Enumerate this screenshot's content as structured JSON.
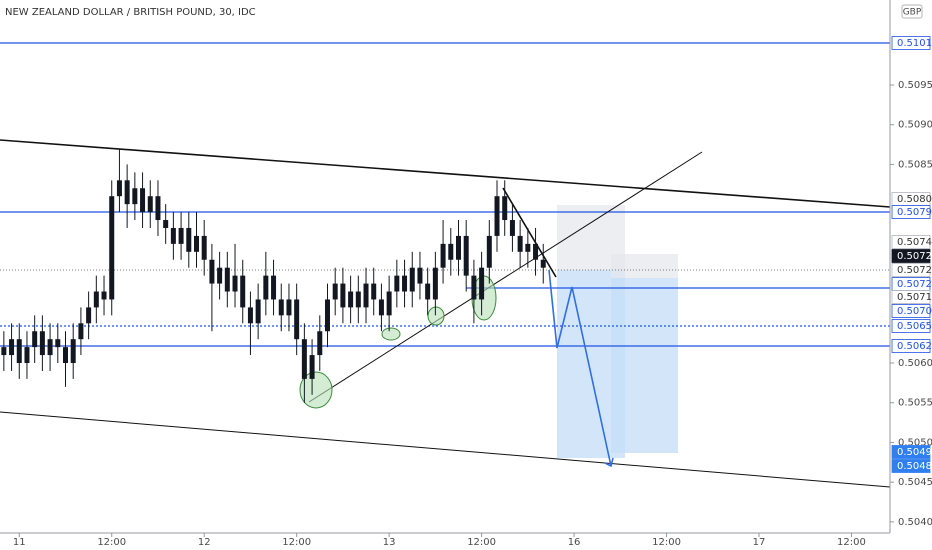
{
  "chart_data": {
    "type": "candlestick",
    "title": "NEW ZEALAND DOLLAR / BRITISH POUND, 30, IDC",
    "currency": "GBP",
    "color": "#131722",
    "ylim": [
      0.50386,
      0.51057
    ],
    "yticks": [
      {
        "value": 0.504,
        "label": "0.5040"
      },
      {
        "value": 0.5045,
        "label": "0.5045"
      },
      {
        "value": 0.505,
        "label": "0.5050"
      },
      {
        "value": 0.5055,
        "label": "0.5055"
      },
      {
        "value": 0.506,
        "label": "0.5060"
      },
      {
        "value": 0.5085,
        "label": "0.5085"
      },
      {
        "value": 0.509,
        "label": "0.5090"
      },
      {
        "value": 0.5095,
        "label": "0.5095"
      }
    ],
    "xlim": [
      -0.5,
      115
    ],
    "xticks": [
      {
        "value": 2,
        "label": "11"
      },
      {
        "value": 14,
        "label": "12:00"
      },
      {
        "value": 26,
        "label": "12"
      },
      {
        "value": 38,
        "label": "12:00"
      },
      {
        "value": 50,
        "label": "13"
      },
      {
        "value": 62,
        "label": "12:00"
      },
      {
        "value": 74,
        "label": "16"
      },
      {
        "value": 86,
        "label": "12:00"
      },
      {
        "value": 98,
        "label": "17"
      },
      {
        "value": 110,
        "label": "12:00"
      }
    ],
    "open": [
      0.5062,
      0.5061,
      0.5063,
      0.506,
      0.5062,
      0.5064,
      0.5061,
      0.5063,
      0.5062,
      0.506,
      0.5063,
      0.5065,
      0.5067,
      0.5069,
      0.5068,
      0.5081,
      0.5083,
      0.508,
      0.5082,
      0.5079,
      0.5081,
      0.5078,
      0.5077,
      0.5075,
      0.5077,
      0.5074,
      0.5076,
      0.5073,
      0.507,
      0.5072,
      0.5069,
      0.5071,
      0.5067,
      0.5065,
      0.5068,
      0.5071,
      0.5068,
      0.5066,
      0.5068,
      0.5063,
      0.5058,
      0.5061,
      0.5064,
      0.5068,
      0.507,
      0.5067,
      0.5069,
      0.5067,
      0.507,
      0.5068,
      0.5066,
      0.5069,
      0.5071,
      0.5069,
      0.5072,
      0.507,
      0.5068,
      0.5072,
      0.5075,
      0.5073,
      0.5076,
      0.5071,
      0.5068,
      0.5072,
      0.5076,
      0.5081,
      0.5078,
      0.5076,
      0.5074,
      0.5075,
      0.5073
    ],
    "high": [
      0.5064,
      0.5065,
      0.5065,
      0.5064,
      0.5066,
      0.5066,
      0.5065,
      0.5065,
      0.5064,
      0.5065,
      0.5067,
      0.5069,
      0.5071,
      0.5071,
      0.5083,
      0.5087,
      0.5085,
      0.5084,
      0.5084,
      0.5083,
      0.5083,
      0.508,
      0.5079,
      0.5079,
      0.5079,
      0.5079,
      0.5078,
      0.5075,
      0.5074,
      0.5074,
      0.5075,
      0.5073,
      0.5069,
      0.507,
      0.5074,
      0.5073,
      0.507,
      0.507,
      0.507,
      0.5065,
      0.5063,
      0.5066,
      0.507,
      0.5072,
      0.5072,
      0.5071,
      0.5071,
      0.5072,
      0.5072,
      0.507,
      0.5071,
      0.5073,
      0.5073,
      0.5074,
      0.5074,
      0.5072,
      0.5074,
      0.5078,
      0.5077,
      0.5078,
      0.5078,
      0.5073,
      0.5074,
      0.5078,
      0.5083,
      0.5083,
      0.508,
      0.5078,
      0.5077,
      0.5077,
      0.5075
    ],
    "low": [
      0.5059,
      0.5059,
      0.5058,
      0.5058,
      0.506,
      0.5059,
      0.5059,
      0.506,
      0.5057,
      0.5058,
      0.5061,
      0.5063,
      0.5065,
      0.5066,
      0.5066,
      0.5079,
      0.5077,
      0.5078,
      0.5077,
      0.5077,
      0.5076,
      0.5075,
      0.5073,
      0.5073,
      0.5072,
      0.5072,
      0.5071,
      0.5064,
      0.5068,
      0.5067,
      0.5067,
      0.5065,
      0.5061,
      0.5063,
      0.5066,
      0.5066,
      0.5064,
      0.5064,
      0.5061,
      0.5055,
      0.5056,
      0.5059,
      0.5062,
      0.5066,
      0.5065,
      0.5065,
      0.5065,
      0.5065,
      0.5066,
      0.5064,
      0.5064,
      0.5067,
      0.5067,
      0.5067,
      0.5068,
      0.5066,
      0.5066,
      0.507,
      0.5071,
      0.5071,
      0.5069,
      0.5065,
      0.5066,
      0.507,
      0.5074,
      0.5076,
      0.5074,
      0.5072,
      0.5072,
      0.5071,
      0.507
    ],
    "close": [
      0.5061,
      0.5063,
      0.506,
      0.5062,
      0.5064,
      0.5061,
      0.5063,
      0.5062,
      0.506,
      0.5063,
      0.5065,
      0.5067,
      0.5069,
      0.5068,
      0.5081,
      0.5083,
      0.508,
      0.5082,
      0.5079,
      0.5081,
      0.5078,
      0.5077,
      0.5075,
      0.5077,
      0.5074,
      0.5076,
      0.5073,
      0.507,
      0.5072,
      0.5069,
      0.5071,
      0.5067,
      0.5065,
      0.5068,
      0.5071,
      0.5068,
      0.5066,
      0.5068,
      0.5063,
      0.5058,
      0.5061,
      0.5064,
      0.5068,
      0.507,
      0.5067,
      0.5069,
      0.5067,
      0.507,
      0.5068,
      0.5066,
      0.5069,
      0.5071,
      0.5069,
      0.5072,
      0.507,
      0.5068,
      0.5072,
      0.5075,
      0.5073,
      0.5076,
      0.5071,
      0.5068,
      0.5072,
      0.5076,
      0.5081,
      0.5078,
      0.5076,
      0.5074,
      0.5075,
      0.5073,
      0.5072
    ],
    "price_labels": [
      {
        "label": "0.5101",
        "style": "line"
      },
      {
        "label": "0.5080",
        "style": "plain"
      },
      {
        "label": "0.5079",
        "style": "line"
      },
      {
        "label": "0.5074",
        "style": "plain"
      },
      {
        "label": "0.5072",
        "style": "last"
      },
      {
        "label": "0.5072",
        "style": "plain"
      },
      {
        "label": "0.5072",
        "style": "line"
      },
      {
        "label": "0.5071",
        "style": "plain"
      },
      {
        "label": "0.5070",
        "style": "line"
      },
      {
        "label": "0.5065",
        "style": "line"
      },
      {
        "label": "0.5062",
        "style": "line"
      },
      {
        "label": "0.5049",
        "style": "filled"
      },
      {
        "label": "0.5048",
        "style": "filled"
      }
    ]
  }
}
